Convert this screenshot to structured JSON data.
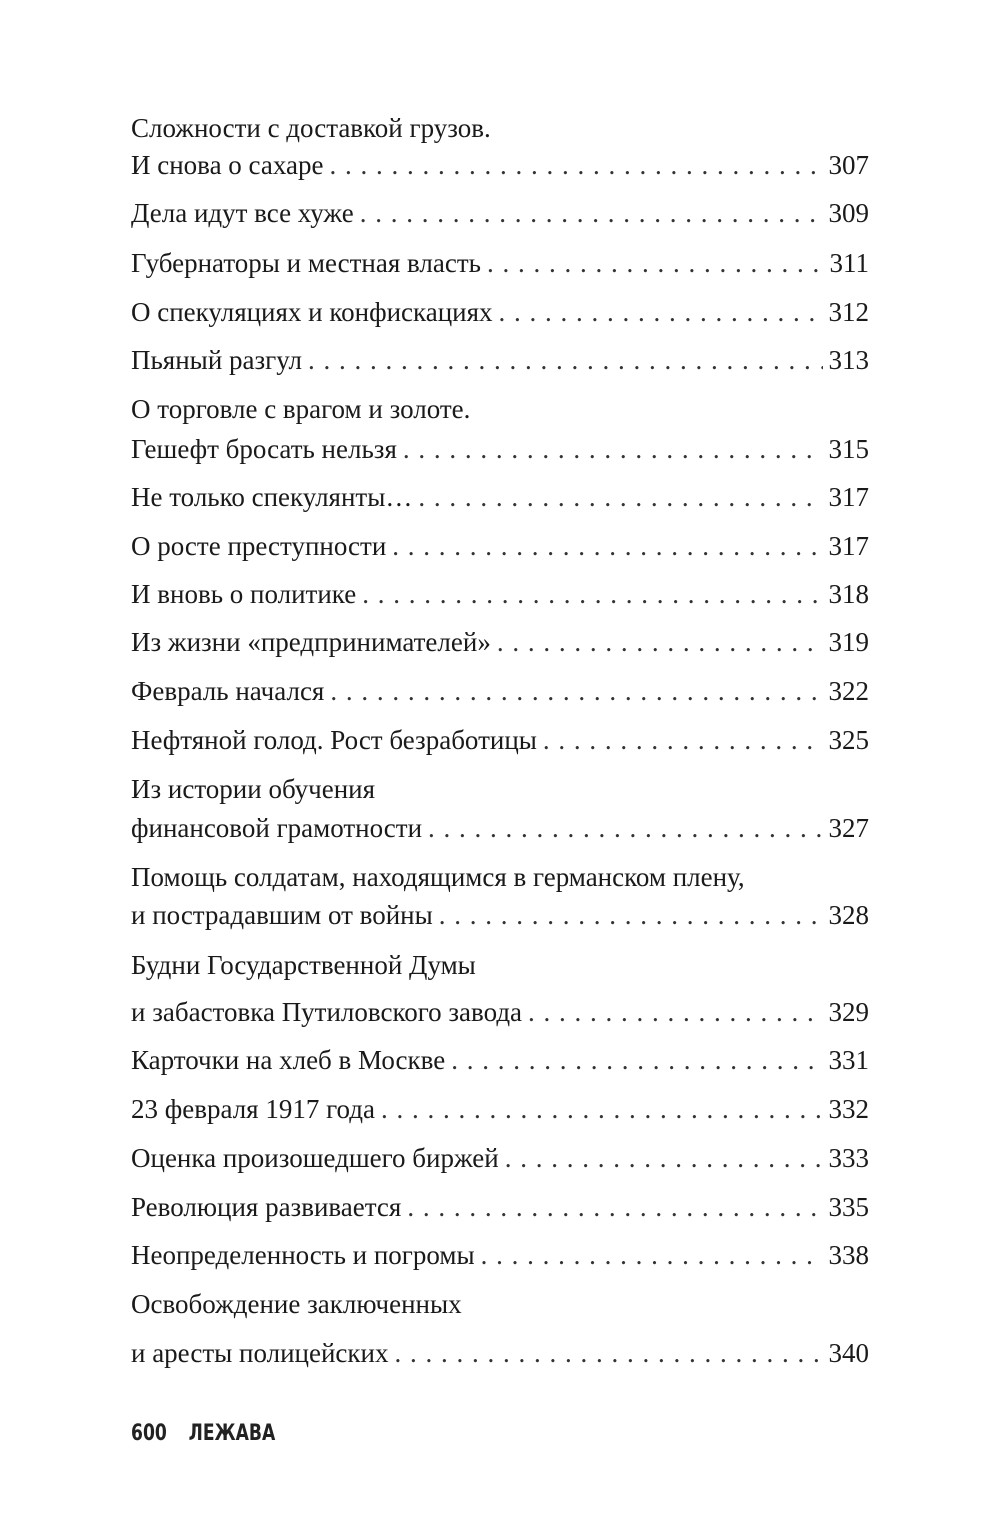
{
  "toc": [
    {
      "lines": [
        "Сложности с доставкой грузов.",
        "И снова о сахаре"
      ],
      "page": "307"
    },
    {
      "lines": [
        "Дела идут все хуже"
      ],
      "page": "309"
    },
    {
      "lines": [
        "Губернаторы и местная власть"
      ],
      "page": "311"
    },
    {
      "lines": [
        "О спекуляциях и конфискациях"
      ],
      "page": "312"
    },
    {
      "lines": [
        "Пьяный разгул"
      ],
      "page": "313"
    },
    {
      "lines": [
        "О торговле с врагом и золоте.",
        "Гешефт бросать нельзя"
      ],
      "page": "315"
    },
    {
      "lines": [
        "Не только спекулянты…"
      ],
      "page": "317"
    },
    {
      "lines": [
        "О росте преступности"
      ],
      "page": "317"
    },
    {
      "lines": [
        "И вновь о политике"
      ],
      "page": "318"
    },
    {
      "lines": [
        "Из жизни «предпринимателей»"
      ],
      "page": "319"
    },
    {
      "lines": [
        "Февраль начался"
      ],
      "page": "322"
    },
    {
      "lines": [
        "Нефтяной голод. Рост безработицы"
      ],
      "page": "325"
    },
    {
      "lines": [
        "Из истории обучения",
        "финансовой грамотности"
      ],
      "page": "327"
    },
    {
      "lines": [
        "Помощь солдатам, находящимся в германском плену,",
        "и пострадавшим от войны"
      ],
      "page": "328"
    },
    {
      "lines": [
        "Будни Государственной Думы",
        "и забастовка Путиловского завода"
      ],
      "page": "329"
    },
    {
      "lines": [
        "Карточки на хлеб в Москве"
      ],
      "page": "331"
    },
    {
      "lines": [
        "23 февраля 1917 года"
      ],
      "page": "332"
    },
    {
      "lines": [
        "Оценка произошедшего биржей"
      ],
      "page": "333"
    },
    {
      "lines": [
        "Революция развивается"
      ],
      "page": "335"
    },
    {
      "lines": [
        "Неопределенность и погромы"
      ],
      "page": "338"
    },
    {
      "lines": [
        "Освобождение заключенных",
        "и аресты полицейских"
      ],
      "page": "340"
    }
  ],
  "footer": {
    "page_number": "600",
    "running_head": "ЛЕЖАВА"
  }
}
